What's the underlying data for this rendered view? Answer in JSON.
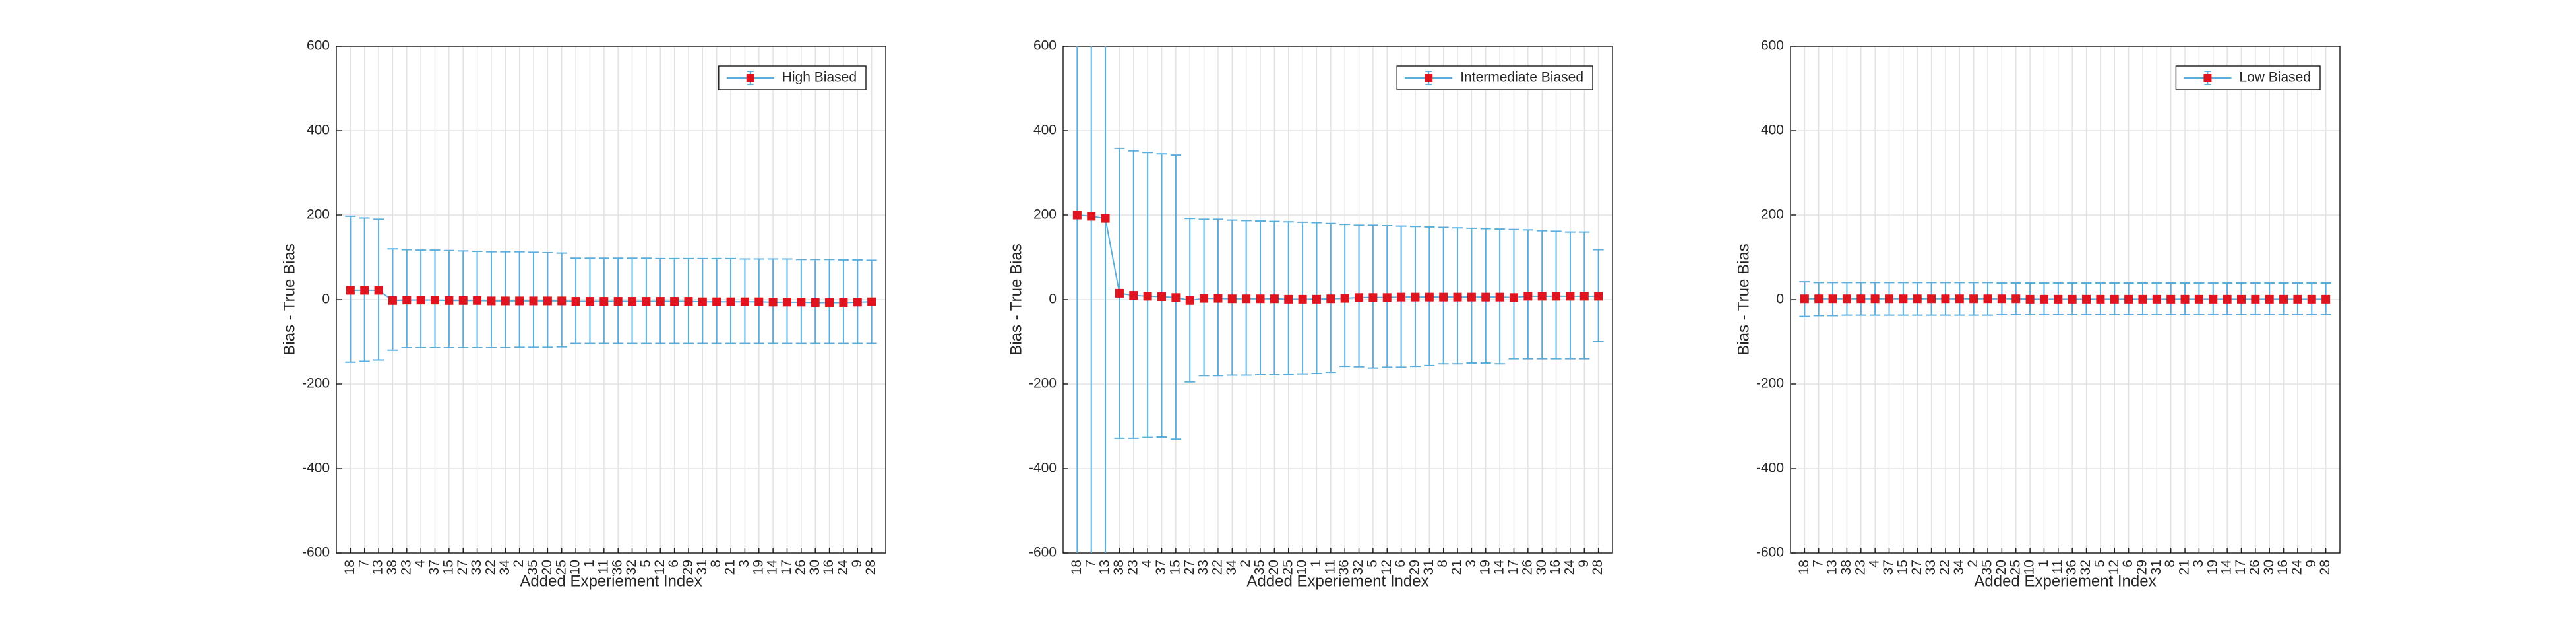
{
  "chart_data": [
    {
      "type": "errorbar",
      "xlabel": "Added Experiement Index",
      "ylabel": "Bias - True Bias",
      "categories": [
        "18",
        "7",
        "13",
        "38",
        "23",
        "4",
        "37",
        "15",
        "27",
        "33",
        "22",
        "34",
        "2",
        "35",
        "20",
        "25",
        "10",
        "1",
        "11",
        "36",
        "32",
        "5",
        "12",
        "6",
        "29",
        "31",
        "8",
        "21",
        "3",
        "19",
        "14",
        "17",
        "26",
        "30",
        "16",
        "24",
        "9",
        "28"
      ],
      "series": [
        {
          "name": "High Biased",
          "color": "#5aaedc",
          "marker_color": "#e0141e",
          "values": [
            22,
            22,
            22,
            -2,
            -1,
            -1,
            -1,
            -2,
            -2,
            -2,
            -3,
            -3,
            -3,
            -3,
            -3,
            -3,
            -4,
            -4,
            -4,
            -4,
            -4,
            -4,
            -4,
            -4,
            -4,
            -5,
            -5,
            -5,
            -5,
            -5,
            -6,
            -6,
            -6,
            -7,
            -7,
            -7,
            -6,
            -5
          ],
          "lower": [
            -148,
            -146,
            -143,
            -120,
            -114,
            -114,
            -114,
            -114,
            -114,
            -114,
            -114,
            -114,
            -113,
            -113,
            -113,
            -112,
            -104,
            -104,
            -104,
            -104,
            -104,
            -104,
            -104,
            -104,
            -104,
            -104,
            -104,
            -104,
            -104,
            -104,
            -104,
            -104,
            -104,
            -104,
            -104,
            -104,
            -104,
            -104
          ],
          "upper": [
            197,
            193,
            190,
            120,
            118,
            117,
            117,
            116,
            115,
            114,
            113,
            113,
            113,
            112,
            111,
            110,
            98,
            98,
            98,
            98,
            98,
            98,
            97,
            97,
            97,
            97,
            97,
            97,
            96,
            96,
            96,
            96,
            95,
            95,
            95,
            94,
            94,
            93
          ]
        }
      ],
      "ylim": [
        -600,
        600
      ],
      "yticks": [
        -600,
        -400,
        -200,
        0,
        200,
        400,
        600
      ],
      "grid": true,
      "legend": "upper right"
    },
    {
      "type": "errorbar",
      "xlabel": "Added Experiement Index",
      "ylabel": "Bias - True Bias",
      "categories": [
        "18",
        "7",
        "13",
        "38",
        "23",
        "4",
        "37",
        "15",
        "27",
        "33",
        "22",
        "34",
        "2",
        "35",
        "20",
        "25",
        "10",
        "1",
        "11",
        "36",
        "32",
        "5",
        "12",
        "6",
        "29",
        "31",
        "8",
        "21",
        "3",
        "19",
        "14",
        "17",
        "26",
        "30",
        "16",
        "24",
        "9",
        "28"
      ],
      "series": [
        {
          "name": "Intermediate Biased",
          "color": "#5aaedc",
          "marker_color": "#e0141e",
          "values": [
            200,
            197,
            192,
            15,
            10,
            8,
            7,
            5,
            -2,
            3,
            3,
            2,
            2,
            2,
            2,
            1,
            1,
            1,
            2,
            3,
            5,
            5,
            5,
            6,
            6,
            6,
            6,
            6,
            6,
            6,
            6,
            5,
            8,
            8,
            8,
            8,
            8,
            8
          ],
          "lower": [
            -650,
            -650,
            -650,
            -328,
            -328,
            -326,
            -325,
            -330,
            -195,
            -180,
            -180,
            -179,
            -179,
            -178,
            -178,
            -177,
            -176,
            -175,
            -172,
            -158,
            -159,
            -162,
            -160,
            -160,
            -158,
            -156,
            -152,
            -152,
            -150,
            -150,
            -152,
            -140,
            -140,
            -140,
            -140,
            -140,
            -140,
            -100
          ],
          "upper": [
            1050,
            1050,
            1050,
            358,
            352,
            348,
            345,
            342,
            192,
            190,
            190,
            188,
            187,
            186,
            185,
            184,
            183,
            182,
            180,
            178,
            176,
            176,
            175,
            174,
            173,
            172,
            171,
            170,
            169,
            168,
            167,
            166,
            165,
            163,
            162,
            160,
            160,
            118
          ]
        }
      ],
      "ylim": [
        -600,
        600
      ],
      "yticks": [
        -600,
        -400,
        -200,
        0,
        200,
        400,
        600
      ],
      "grid": true,
      "legend": "upper right"
    },
    {
      "type": "errorbar",
      "xlabel": "Added Experiement Index",
      "ylabel": "Bias - True Bias",
      "categories": [
        "18",
        "7",
        "13",
        "38",
        "23",
        "4",
        "37",
        "15",
        "27",
        "33",
        "22",
        "34",
        "2",
        "35",
        "20",
        "25",
        "10",
        "1",
        "11",
        "36",
        "32",
        "5",
        "12",
        "6",
        "29",
        "31",
        "8",
        "21",
        "3",
        "19",
        "14",
        "17",
        "26",
        "30",
        "16",
        "24",
        "9",
        "28"
      ],
      "series": [
        {
          "name": "Low Biased",
          "color": "#5aaedc",
          "marker_color": "#e0141e",
          "values": [
            2,
            2,
            2,
            2,
            2,
            2,
            2,
            2,
            2,
            2,
            2,
            2,
            2,
            2,
            2,
            2,
            1,
            1,
            1,
            1,
            1,
            1,
            1,
            1,
            1,
            1,
            1,
            1,
            1,
            1,
            1,
            1,
            1,
            1,
            1,
            1,
            1,
            1
          ],
          "lower": [
            -40,
            -38,
            -38,
            -37,
            -37,
            -37,
            -37,
            -37,
            -37,
            -37,
            -37,
            -37,
            -37,
            -37,
            -36,
            -36,
            -36,
            -36,
            -36,
            -36,
            -36,
            -36,
            -36,
            -36,
            -36,
            -36,
            -36,
            -36,
            -36,
            -36,
            -36,
            -36,
            -36,
            -36,
            -36,
            -36,
            -36,
            -36
          ],
          "upper": [
            42,
            40,
            40,
            40,
            40,
            40,
            40,
            40,
            40,
            40,
            40,
            40,
            40,
            40,
            39,
            39,
            39,
            39,
            39,
            39,
            39,
            39,
            39,
            39,
            39,
            39,
            39,
            39,
            39,
            39,
            39,
            39,
            39,
            39,
            39,
            39,
            39,
            39
          ]
        }
      ],
      "ylim": [
        -600,
        600
      ],
      "yticks": [
        -600,
        -400,
        -200,
        0,
        200,
        400,
        600
      ],
      "grid": true,
      "legend": "upper right"
    }
  ]
}
